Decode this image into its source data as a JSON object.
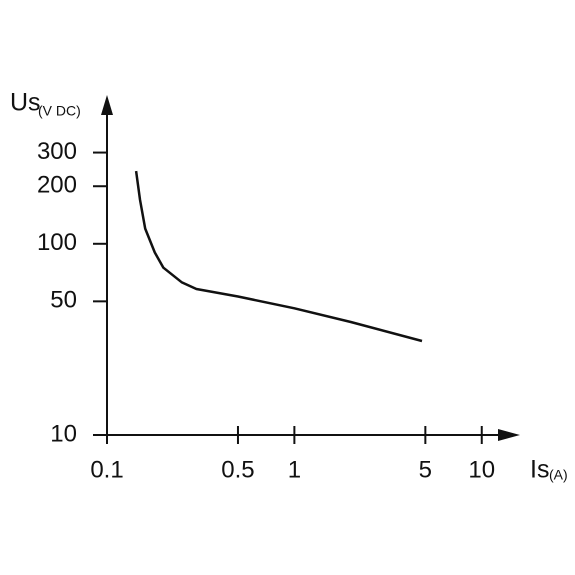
{
  "chart_data": {
    "type": "line",
    "ylabel": "Us",
    "ylabel_unit": "(V DC)",
    "xlabel": "Is",
    "xlabel_unit": "(A)",
    "xscale": "log",
    "yscale": "log",
    "xlim": [
      0.1,
      16
    ],
    "ylim": [
      10,
      600
    ],
    "xticks": [
      0.1,
      0.5,
      1,
      5,
      10
    ],
    "yticks": [
      10,
      50,
      100,
      200,
      300
    ],
    "color": "#111111",
    "x": [
      0.143,
      0.15,
      0.16,
      0.18,
      0.2,
      0.25,
      0.3,
      0.5,
      1,
      2,
      4.8
    ],
    "values": [
      240,
      170,
      120,
      90,
      75,
      63,
      58,
      53,
      46,
      39,
      31
    ]
  }
}
